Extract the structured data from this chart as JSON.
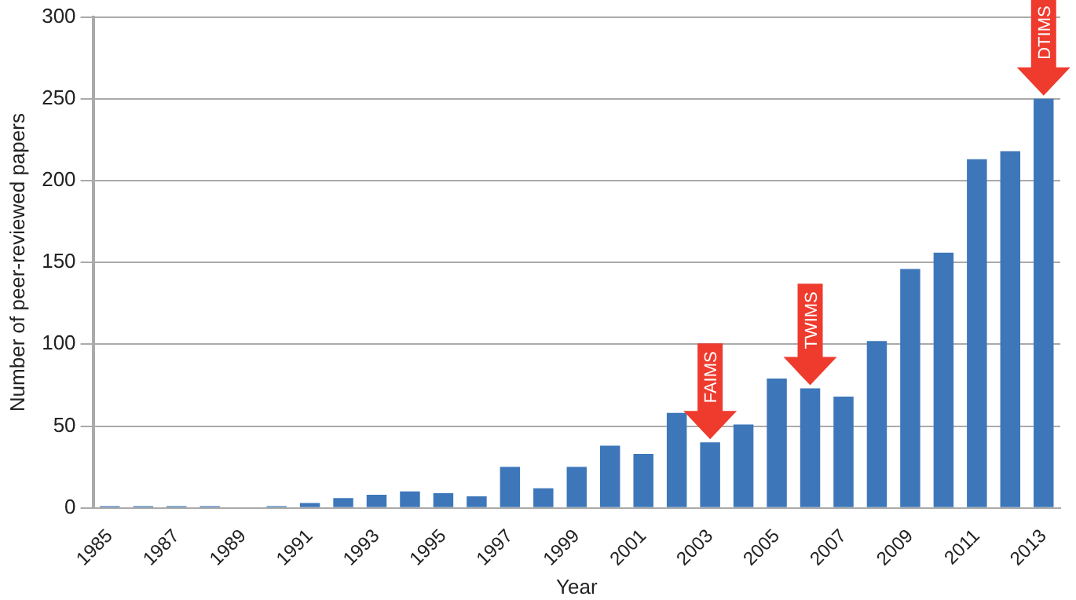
{
  "chart_data": {
    "type": "bar",
    "xlabel": "Year",
    "ylabel": "Number of peer-reviewed papers",
    "categories": [
      "1985",
      null,
      "1987",
      null,
      "1989",
      null,
      "1991",
      null,
      "1993",
      null,
      "1995",
      null,
      "1997",
      null,
      "1999",
      null,
      "2001",
      null,
      "2003",
      null,
      "2005",
      null,
      "2007",
      null,
      "2009",
      null,
      "2011",
      null,
      "2013"
    ],
    "values": [
      1,
      1,
      1,
      1,
      0,
      1,
      3,
      6,
      8,
      10,
      9,
      7,
      25,
      12,
      25,
      38,
      33,
      58,
      40,
      51,
      79,
      73,
      68,
      102,
      146,
      156,
      213,
      218,
      250
    ],
    "color": "#3d77b9",
    "ylim": [
      0,
      300
    ],
    "yticks": [
      0,
      50,
      100,
      150,
      200,
      250,
      300
    ],
    "grid": "y",
    "annotations": [
      {
        "text": "FAIMS",
        "x": "2003",
        "y": 40
      },
      {
        "text": "TWIMS",
        "y": 73
      },
      {
        "text": "DTIMS",
        "x": "2013",
        "y": 250
      }
    ]
  }
}
